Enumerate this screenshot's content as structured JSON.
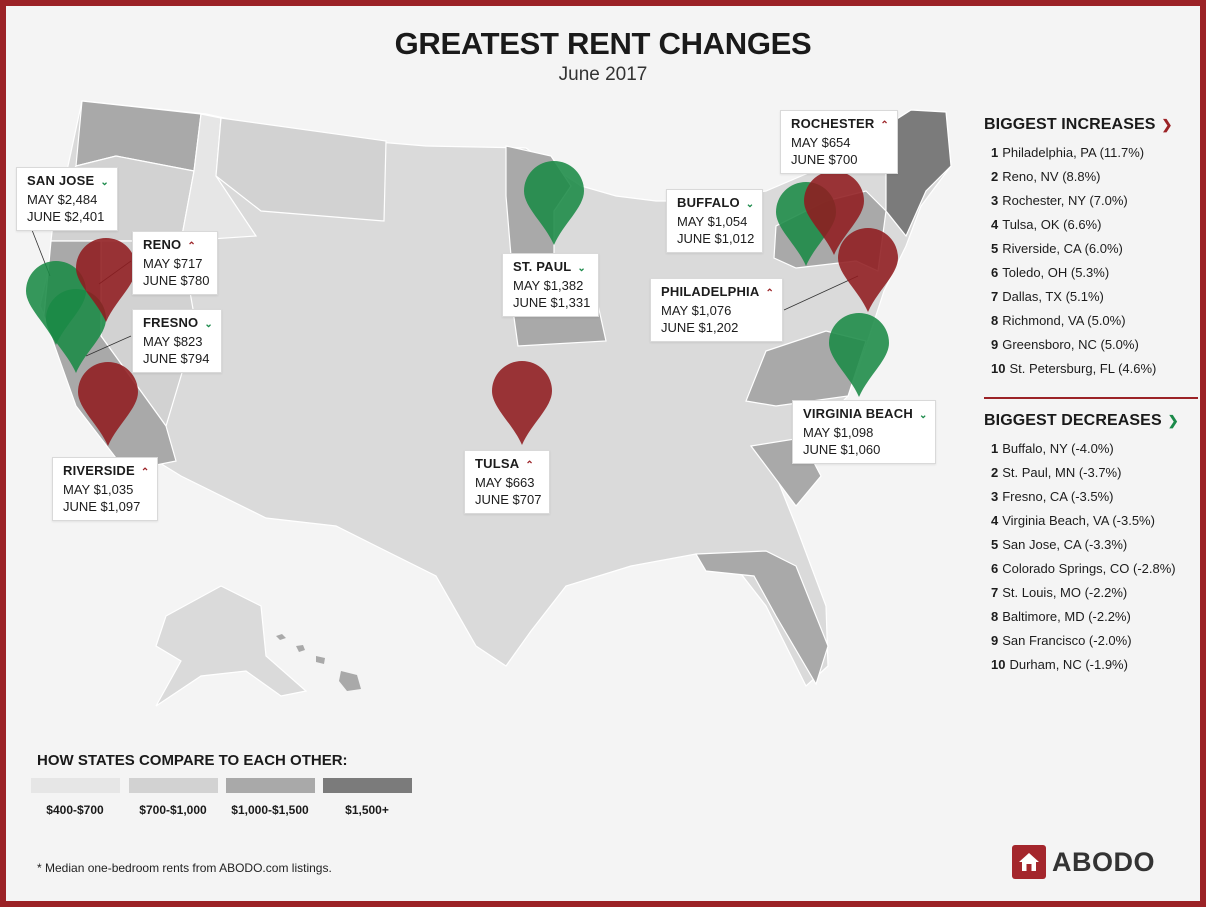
{
  "title": "GREATEST RENT CHANGES",
  "subtitle": "June 2017",
  "colors": {
    "increase": "#8f1b1f",
    "decrease": "#1a8a45",
    "frame": "#9b2226",
    "tier1": "#e6e6e6",
    "tier2": "#d2d2d2",
    "tier3": "#a9a9a9",
    "tier4": "#7b7b7b"
  },
  "cities": [
    {
      "name": "SAN JOSE",
      "direction": "down",
      "may": "MAY $2,484",
      "june": "JUNE $2,401"
    },
    {
      "name": "RENO",
      "direction": "up",
      "may": "MAY $717",
      "june": "JUNE $780"
    },
    {
      "name": "FRESNO",
      "direction": "down",
      "may": "MAY $823",
      "june": "JUNE $794"
    },
    {
      "name": "RIVERSIDE",
      "direction": "up",
      "may": "MAY $1,035",
      "june": "JUNE $1,097"
    },
    {
      "name": "ST. PAUL",
      "direction": "down",
      "may": "MAY $1,382",
      "june": "JUNE $1,331"
    },
    {
      "name": "TULSA",
      "direction": "up",
      "may": "MAY $663",
      "june": "JUNE $707"
    },
    {
      "name": "ROCHESTER",
      "direction": "up",
      "may": "MAY $654",
      "june": "JUNE $700"
    },
    {
      "name": "BUFFALO",
      "direction": "down",
      "may": "MAY $1,054",
      "june": "JUNE $1,012"
    },
    {
      "name": "PHILADELPHIA",
      "direction": "up",
      "may": "MAY $1,076",
      "june": "JUNE $1,202"
    },
    {
      "name": "VIRGINIA BEACH",
      "direction": "down",
      "may": "MAY $1,098",
      "june": "JUNE $1,060"
    }
  ],
  "increases": {
    "heading": "BIGGEST INCREASES",
    "icon": "chevron-up-icon",
    "items": [
      {
        "rank": "1",
        "label": "Philadelphia, PA (11.7%)"
      },
      {
        "rank": "2",
        "label": "Reno, NV (8.8%)"
      },
      {
        "rank": "3",
        "label": "Rochester, NY (7.0%)"
      },
      {
        "rank": "4",
        "label": "Tulsa, OK (6.6%)"
      },
      {
        "rank": "5",
        "label": "Riverside, CA (6.0%)"
      },
      {
        "rank": "6",
        "label": "Toledo, OH (5.3%)"
      },
      {
        "rank": "7",
        "label": "Dallas, TX (5.1%)"
      },
      {
        "rank": "8",
        "label": "Richmond, VA (5.0%)"
      },
      {
        "rank": "9",
        "label": "Greensboro, NC (5.0%)"
      },
      {
        "rank": "10",
        "label": "St. Petersburg, FL (4.6%)"
      }
    ]
  },
  "decreases": {
    "heading": "BIGGEST DECREASES",
    "icon": "chevron-down-icon",
    "items": [
      {
        "rank": "1",
        "label": "Buffalo, NY (-4.0%)"
      },
      {
        "rank": "2",
        "label": "St. Paul, MN (-3.7%)"
      },
      {
        "rank": "3",
        "label": "Fresno, CA (-3.5%)"
      },
      {
        "rank": "4",
        "label": "Virginia Beach, VA (-3.5%)"
      },
      {
        "rank": "5",
        "label": "San Jose, CA (-3.3%)"
      },
      {
        "rank": "6",
        "label": "Colorado Springs, CO (-2.8%)"
      },
      {
        "rank": "7",
        "label": "St. Louis, MO (-2.2%)"
      },
      {
        "rank": "8",
        "label": "Baltimore, MD (-2.2%)"
      },
      {
        "rank": "9",
        "label": "San Francisco (-2.0%)"
      },
      {
        "rank": "10",
        "label": "Durham, NC (-1.9%)"
      }
    ]
  },
  "legend": {
    "title": "HOW STATES COMPARE TO EACH OTHER:",
    "items": [
      {
        "label": "$400-$700",
        "color": "#e6e6e6"
      },
      {
        "label": "$700-$1,000",
        "color": "#d2d2d2"
      },
      {
        "label": "$1,000-$1,500",
        "color": "#a9a9a9"
      },
      {
        "label": "$1,500+",
        "color": "#7b7b7b"
      }
    ]
  },
  "footnote": "* Median one-bedroom rents from ABODO.com listings.",
  "logo": {
    "text": "ABODO",
    "icon": "house-icon"
  }
}
